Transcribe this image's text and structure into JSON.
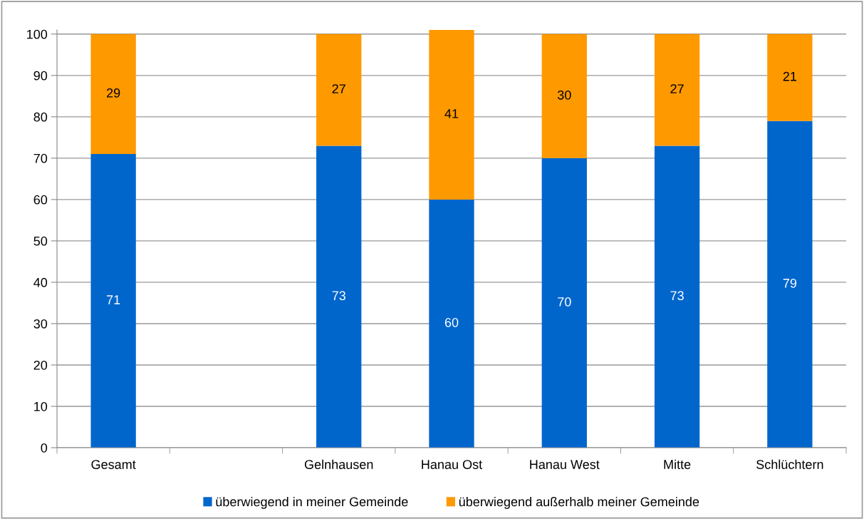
{
  "chart_data": {
    "type": "bar",
    "stacked": true,
    "categories": [
      "Gesamt",
      null,
      "Gelnhausen",
      "Hanau Ost",
      "Hanau West",
      "Mitte",
      "Schlüchtern"
    ],
    "series": [
      {
        "name": "überwiegend in meiner Gemeinde",
        "color": "#0066cc",
        "values": [
          71,
          null,
          73,
          60,
          70,
          73,
          79
        ]
      },
      {
        "name": "überwiegend außerhalb meiner Gemeinde",
        "color": "#ff9900",
        "values": [
          29,
          null,
          27,
          41,
          30,
          27,
          21
        ]
      }
    ],
    "ylim": [
      0,
      101
    ],
    "yticks": [
      0,
      10,
      20,
      30,
      40,
      50,
      60,
      70,
      80,
      90,
      100
    ],
    "grid": "y",
    "legend": "bottom",
    "data_labels": true
  }
}
